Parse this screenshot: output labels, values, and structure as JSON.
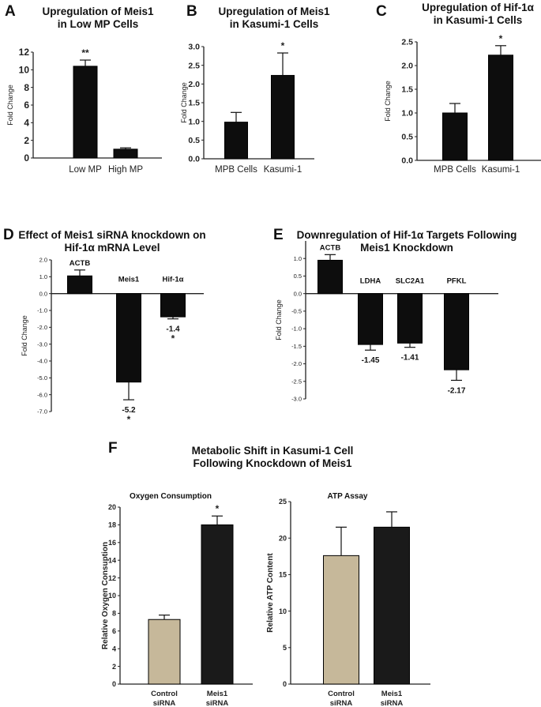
{
  "colors": {
    "bar_dark": "#0d0d0d",
    "bar_dark_f": "#1a1a1a",
    "bar_tan": "#c6b89a",
    "axis": "#222222",
    "text": "#111111"
  },
  "panels": {
    "A": {
      "letter": "A",
      "title_lines": [
        "Upregulation of  Meis1",
        "in Low MP Cells"
      ]
    },
    "B": {
      "letter": "B",
      "title_lines": [
        "Upregulation of Meis1",
        "in Kasumi-1 Cells"
      ]
    },
    "C": {
      "letter": "C",
      "title_lines": [
        "Upregulation of Hif-1α",
        "in Kasumi-1 Cells"
      ]
    },
    "D": {
      "letter": "D",
      "title_lines": [
        "Effect of Meis1 siRNA knockdown on",
        "Hif-1α  mRNA Level"
      ]
    },
    "E": {
      "letter": "E",
      "title_lines": [
        "Downregulation of Hif-1α Targets Following",
        "Meis1 Knockdown"
      ]
    },
    "F": {
      "letter": "F",
      "title_lines": [
        "Metabolic Shift in Kasumi-1 Cell",
        "Following Knockdown of Meis1"
      ]
    }
  },
  "chart_data": [
    {
      "id": "A",
      "type": "bar",
      "title": "Upregulation of Meis1 in Low MP Cells",
      "xlabel": "",
      "ylabel": "Fold Change",
      "ylim": [
        0,
        12
      ],
      "yticks": [
        0,
        2,
        4,
        6,
        8,
        10,
        12
      ],
      "ytick_labels": [
        "0",
        "2",
        "4",
        "6",
        "8",
        "10",
        "12"
      ],
      "categories": [
        "Low MP",
        "High MP"
      ],
      "values": [
        10.4,
        1.0
      ],
      "errors": [
        0.7,
        0.15
      ],
      "annotations": [
        "**",
        ""
      ],
      "colors": [
        "dark",
        "dark"
      ]
    },
    {
      "id": "B",
      "type": "bar",
      "title": "Upregulation of Meis1 in Kasumi-1 Cells",
      "xlabel": "",
      "ylabel": "Fold Change",
      "ylim": [
        0,
        3.0
      ],
      "yticks": [
        0,
        0.5,
        1.0,
        1.5,
        2.0,
        2.5,
        3.0
      ],
      "ytick_labels": [
        "0.0",
        "0.5",
        "1.0",
        "1.5",
        "2.0",
        "2.5",
        "3.0"
      ],
      "categories": [
        "MPB Cells",
        "Kasumi-1"
      ],
      "values": [
        0.98,
        2.23
      ],
      "errors": [
        0.26,
        0.6
      ],
      "annotations": [
        "",
        "*"
      ],
      "colors": [
        "dark",
        "dark"
      ]
    },
    {
      "id": "C",
      "type": "bar",
      "title": "Upregulation of Hif-1α in Kasumi-1 Cells",
      "xlabel": "",
      "ylabel": "Fold Change",
      "ylim": [
        0,
        2.5
      ],
      "yticks": [
        0,
        0.5,
        1.0,
        1.5,
        2.0,
        2.5
      ],
      "ytick_labels": [
        "0.0",
        "0.5",
        "1.0",
        "1.5",
        "2.0",
        "2.5"
      ],
      "categories": [
        "MPB Cells",
        "Kasumi-1"
      ],
      "values": [
        1.0,
        2.22
      ],
      "errors": [
        0.2,
        0.2
      ],
      "annotations": [
        "",
        "*"
      ],
      "colors": [
        "dark",
        "dark"
      ]
    },
    {
      "id": "D",
      "type": "bar",
      "title": "Effect of Meis1 siRNA knockdown on Hif-1α mRNA Level",
      "xlabel": "",
      "ylabel": "Fold Change",
      "ylim": [
        -7.0,
        2.0
      ],
      "yticks": [
        2,
        1,
        0,
        -1,
        -2,
        -3,
        -4,
        -5,
        -6,
        -7
      ],
      "ytick_labels": [
        "2.0",
        "1.0",
        "0.0",
        "-1.0",
        "-2.0",
        "-3.0",
        "-4.0",
        "-5.0",
        "-6.0",
        "-7.0"
      ],
      "categories": [
        "ACTB",
        "Meis1",
        "Hif-1α"
      ],
      "values": [
        1.05,
        -5.25,
        -1.38
      ],
      "errors": [
        0.35,
        1.05,
        0.12
      ],
      "value_labels": [
        "",
        "-5.2",
        "-1.4"
      ],
      "annotations": [
        "",
        "*",
        "*"
      ],
      "colors": [
        "dark",
        "dark",
        "dark"
      ]
    },
    {
      "id": "E",
      "type": "bar",
      "title": "Downregulation of Hif-1α Targets Following Meis1 Knockdown",
      "xlabel": "",
      "ylabel": "Fold Change",
      "ylim": [
        -3.0,
        1.5
      ],
      "yticks": [
        1.0,
        0.5,
        0,
        -0.5,
        -1.0,
        -1.5,
        -2.0,
        -2.5,
        -3.0
      ],
      "ytick_labels": [
        "1.0",
        "0.5",
        "0.0",
        "-0.5",
        "-1.0",
        "-1.5",
        "-2.0",
        "-2.5",
        "-3.0"
      ],
      "categories": [
        "ACTB",
        "LDHA",
        "SLC2A1",
        "PFKL"
      ],
      "values": [
        0.95,
        -1.45,
        -1.41,
        -2.17
      ],
      "errors": [
        0.16,
        0.16,
        0.12,
        0.3
      ],
      "value_labels": [
        "",
        "-1.45",
        "-1.41",
        "-2.17"
      ],
      "annotations": [
        "",
        "",
        "",
        ""
      ],
      "colors": [
        "dark",
        "dark",
        "dark",
        "dark"
      ]
    },
    {
      "id": "F1",
      "type": "bar",
      "title": "Oxygen Consumption",
      "xlabel": "",
      "ylabel": "Relative Oxygen Consuption",
      "ylim": [
        0,
        20
      ],
      "yticks": [
        0,
        2,
        4,
        6,
        8,
        10,
        12,
        14,
        16,
        18,
        20
      ],
      "ytick_labels": [
        "0",
        "2",
        "4",
        "6",
        "8",
        "10",
        "12",
        "14",
        "16",
        "18",
        "20"
      ],
      "categories": [
        "Control\nsiRNA",
        "Meis1\nsiRNA"
      ],
      "values": [
        7.3,
        18.0
      ],
      "errors": [
        0.5,
        1.0
      ],
      "annotations": [
        "",
        "*"
      ],
      "colors": [
        "tan",
        "darkf"
      ]
    },
    {
      "id": "F2",
      "type": "bar",
      "title": "ATP Assay",
      "xlabel": "",
      "ylabel": "Relative ATP Content",
      "ylim": [
        0,
        25
      ],
      "yticks": [
        0,
        5,
        10,
        15,
        20,
        25
      ],
      "ytick_labels": [
        "0",
        "5",
        "10",
        "15",
        "20",
        "25"
      ],
      "categories": [
        "Control\nsiRNA",
        "Meis1\nsiRNA"
      ],
      "values": [
        17.6,
        21.5
      ],
      "errors": [
        3.9,
        2.1
      ],
      "annotations": [
        "",
        ""
      ],
      "colors": [
        "tan",
        "darkf"
      ]
    }
  ]
}
